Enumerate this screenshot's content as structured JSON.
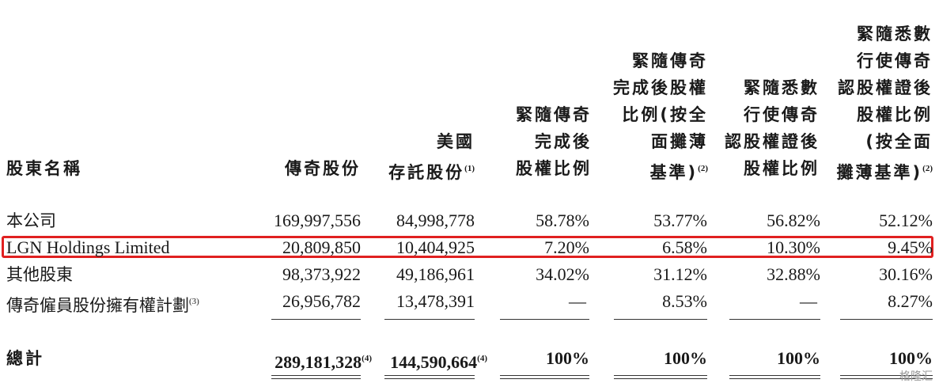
{
  "headers": {
    "name": "股東名稱",
    "shares_l1": "傳奇股份",
    "ads_l1": "美國",
    "ads_l2": "存託股份",
    "ads_sup": "(1)",
    "col3_l1": "緊隨傳奇",
    "col3_l2": "完成後",
    "col3_l3": "股權比例",
    "col4_l1": "緊隨傳奇",
    "col4_l2": "完成後股權",
    "col4_l3": "比例(按全",
    "col4_l4": "面攤薄",
    "col4_l5": "基準)",
    "col4_sup": "(2)",
    "col5_l1": "緊隨悉數",
    "col5_l2": "行使傳奇",
    "col5_l3": "認股權證後",
    "col5_l4": "股權比例",
    "col6_l1": "緊隨悉數",
    "col6_l2": "行使傳奇",
    "col6_l3": "認股權證後",
    "col6_l4": "股權比例",
    "col6_l5": "(按全面",
    "col6_l6": "攤薄基準)",
    "col6_sup": "(2)"
  },
  "rows": [
    {
      "name": "本公司",
      "shares": "169,997,556",
      "ads": "84,998,778",
      "c3": "58.78%",
      "c4": "53.77%",
      "c5": "56.82%",
      "c6": "52.12%"
    },
    {
      "name": "LGN Holdings Limited",
      "shares": "20,809,850",
      "ads": "10,404,925",
      "c3": "7.20%",
      "c4": "6.58%",
      "c5": "10.30%",
      "c6": "9.45%"
    },
    {
      "name": "其他股東",
      "shares": "98,373,922",
      "ads": "49,186,961",
      "c3": "34.02%",
      "c4": "31.12%",
      "c5": "32.88%",
      "c6": "30.16%"
    },
    {
      "name": "傳奇僱員股份擁有權計劃",
      "name_sup": "(3)",
      "shares": "26,956,782",
      "ads": "13,478,391",
      "c3": "—",
      "c4": "8.53%",
      "c5": "—",
      "c6": "8.27%"
    }
  ],
  "total": {
    "name": "總計",
    "shares": "289,181,328",
    "shares_sup": "(4)",
    "ads": "144,590,664",
    "ads_sup": "(4)",
    "c3": "100%",
    "c4": "100%",
    "c5": "100%",
    "c6": "100%"
  },
  "highlight_color": "#e02020",
  "watermark": "格隆汇"
}
